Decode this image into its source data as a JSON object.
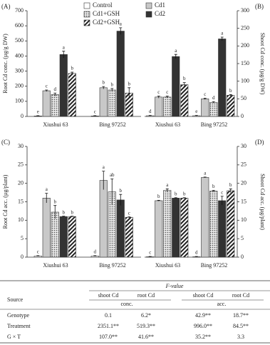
{
  "chart_data": [
    {
      "type": "bar",
      "panel_label": "(A)",
      "y_label": "Root Cd conc. (µg/g DW)",
      "axis_side": "left",
      "categories": [
        "Xiushui 63",
        "Bing 97252"
      ],
      "ylim": [
        0,
        700
      ],
      "yticks": [
        0,
        100,
        200,
        300,
        400,
        500,
        600,
        700
      ],
      "series": [
        {
          "name": "Control",
          "color": "#ffffff",
          "pattern": "none",
          "values": [
            3,
            3
          ],
          "errors": [
            2,
            2
          ],
          "letters": [
            "e",
            "c"
          ]
        },
        {
          "name": "Cd1",
          "color": "#c8c8c8",
          "pattern": "none",
          "values": [
            170,
            190
          ],
          "errors": [
            5,
            8
          ],
          "letters": [
            "c",
            "b"
          ]
        },
        {
          "name": "Cd1+GSH",
          "color": "#bdbdbd",
          "pattern": "dots",
          "values": [
            145,
            175
          ],
          "errors": [
            10,
            10
          ],
          "letters": [
            "d",
            "b"
          ]
        },
        {
          "name": "Cd2",
          "color": "#333333",
          "pattern": "none",
          "values": [
            410,
            565
          ],
          "errors": [
            22,
            22
          ],
          "letters": [
            "a",
            "a"
          ]
        },
        {
          "name": "Cd2+GSH",
          "color": "#333333",
          "pattern": "diagonal",
          "values": [
            285,
            155
          ],
          "errors": [
            8,
            35
          ],
          "letters": [
            "b",
            "b"
          ]
        }
      ]
    },
    {
      "type": "bar",
      "panel_label": "(B)",
      "y_label": "Shoot Cd conc. (µg/g DW)",
      "axis_side": "right",
      "categories": [
        "Xiushui 63",
        "Bing 97252"
      ],
      "ylim": [
        0,
        300
      ],
      "yticks": [
        0,
        50,
        100,
        150,
        200,
        250,
        300
      ],
      "series": [
        {
          "name": "Control",
          "color": "#ffffff",
          "pattern": "none",
          "values": [
            2,
            2
          ],
          "errors": [
            1,
            1
          ],
          "letters": [
            "d",
            "e"
          ]
        },
        {
          "name": "Cd1",
          "color": "#c8c8c8",
          "pattern": "none",
          "values": [
            55,
            50
          ],
          "errors": [
            3,
            2
          ],
          "letters": [
            "c",
            "c"
          ]
        },
        {
          "name": "Cd1+GSH",
          "color": "#bdbdbd",
          "pattern": "dots",
          "values": [
            55,
            40
          ],
          "errors": [
            3,
            2
          ],
          "letters": [
            "c",
            "d"
          ]
        },
        {
          "name": "Cd2",
          "color": "#333333",
          "pattern": "none",
          "values": [
            170,
            220
          ],
          "errors": [
            6,
            5
          ],
          "letters": [
            "a",
            "a"
          ]
        },
        {
          "name": "Cd2+GSH",
          "color": "#333333",
          "pattern": "diagonal",
          "values": [
            90,
            60
          ],
          "errors": [
            6,
            2
          ],
          "letters": [
            "b",
            "b"
          ]
        }
      ]
    },
    {
      "type": "bar",
      "panel_label": "(C)",
      "y_label": "Root Cd acc. (µg/plant)",
      "axis_side": "left",
      "categories": [
        "Xiushui 63",
        "Bing 97252"
      ],
      "ylim": [
        0,
        30
      ],
      "yticks": [
        0,
        5,
        10,
        15,
        20,
        25,
        30
      ],
      "series": [
        {
          "name": "Control",
          "color": "#ffffff",
          "pattern": "none",
          "values": [
            0.3,
            0.3
          ],
          "errors": [
            0.1,
            0.1
          ],
          "letters": [
            "c",
            "d"
          ]
        },
        {
          "name": "Cd1",
          "color": "#c8c8c8",
          "pattern": "none",
          "values": [
            16,
            20.8
          ],
          "errors": [
            1.3,
            2.5
          ],
          "letters": [
            "a",
            "a"
          ]
        },
        {
          "name": "Cd1+GSH",
          "color": "#bdbdbd",
          "pattern": "dots",
          "values": [
            12.2,
            17.7
          ],
          "errors": [
            1.8,
            3.5
          ],
          "letters": [
            "b",
            "ab"
          ]
        },
        {
          "name": "Cd2",
          "color": "#333333",
          "pattern": "none",
          "values": [
            11,
            15.5
          ],
          "errors": [
            0.1,
            1.5
          ],
          "letters": [
            "b",
            "b"
          ]
        },
        {
          "name": "Cd2+GSH",
          "color": "#333333",
          "pattern": "diagonal",
          "values": [
            11,
            10.8
          ],
          "errors": [
            0.1,
            0.1
          ],
          "letters": [
            "b",
            "c"
          ]
        }
      ]
    },
    {
      "type": "bar",
      "panel_label": "(D)",
      "y_label": "Shoot Cd acc. (µg/plant)",
      "axis_side": "right",
      "categories": [
        "Xiushui 63",
        "Bing 97252"
      ],
      "ylim": [
        0,
        30
      ],
      "yticks": [
        0,
        5,
        10,
        15,
        20,
        25,
        30
      ],
      "series": [
        {
          "name": "Control",
          "color": "#ffffff",
          "pattern": "none",
          "values": [
            0.1,
            0.1
          ],
          "errors": [
            0.1,
            0.1
          ],
          "letters": [
            "c",
            "d"
          ]
        },
        {
          "name": "Cd1",
          "color": "#c8c8c8",
          "pattern": "none",
          "values": [
            15.3,
            21.6
          ],
          "errors": [
            0.1,
            0.1
          ],
          "letters": [
            "b",
            "a"
          ]
        },
        {
          "name": "Cd1+GSH",
          "color": "#bdbdbd",
          "pattern": "dots",
          "values": [
            18.1,
            17.9
          ],
          "errors": [
            0.4,
            0.2
          ],
          "letters": [
            "a",
            "b"
          ]
        },
        {
          "name": "Cd2",
          "color": "#333333",
          "pattern": "none",
          "values": [
            16,
            15.3
          ],
          "errors": [
            0.1,
            1.2
          ],
          "letters": [
            "b",
            "c"
          ]
        },
        {
          "name": "Cd2+GSH",
          "color": "#333333",
          "pattern": "diagonal",
          "values": [
            16,
            18
          ],
          "errors": [
            0.1,
            0.5
          ],
          "letters": [
            "b",
            "b"
          ]
        }
      ]
    }
  ],
  "table": {
    "caption": "F-value",
    "columns": [
      "Source",
      "shoot Cd",
      "root Cd",
      "shoot Cd",
      "root Cd"
    ],
    "groups": [
      "conc.",
      "acc."
    ],
    "rows": [
      [
        "Genotype",
        "0.1",
        "6.2*",
        "42.9**",
        "18.7**"
      ],
      [
        "Treatment",
        "2351.1**",
        "519.3**",
        "996.0**",
        "84.5**"
      ],
      [
        "G × T",
        "107.0**",
        "41.6**",
        "35.2**",
        "3.3"
      ]
    ]
  }
}
